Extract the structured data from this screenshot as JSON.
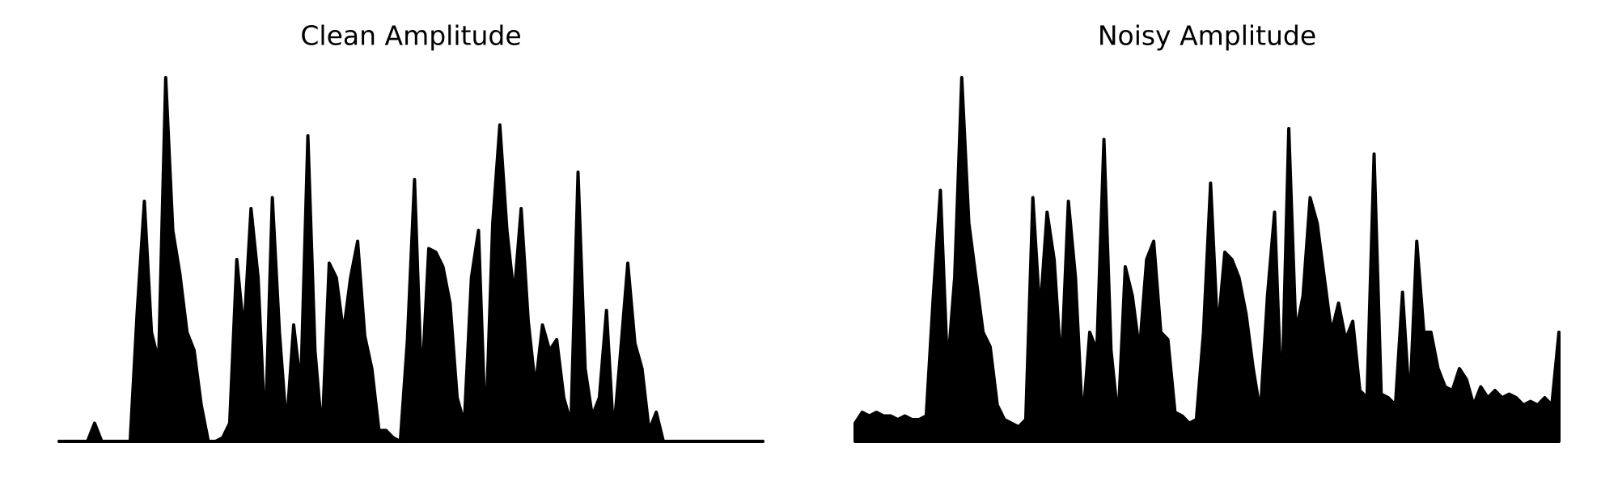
{
  "chart_data": [
    {
      "type": "area",
      "title": "Clean Amplitude",
      "color": "#000000",
      "ylim": [
        0,
        1
      ],
      "values": [
        0,
        0,
        0,
        0,
        0,
        0.05,
        0,
        0,
        0,
        0,
        0,
        0.36,
        0.66,
        0.3,
        0.22,
        1.0,
        0.58,
        0.46,
        0.3,
        0.25,
        0.1,
        0,
        0,
        0.01,
        0.05,
        0.5,
        0.3,
        0.64,
        0.45,
        0.02,
        0.67,
        0.3,
        0.04,
        0.32,
        0.15,
        0.84,
        0.25,
        0.02,
        0.49,
        0.45,
        0.3,
        0.45,
        0.55,
        0.29,
        0.2,
        0.03,
        0.03,
        0.01,
        0,
        0.28,
        0.72,
        0.15,
        0.53,
        0.52,
        0.48,
        0.38,
        0.12,
        0.05,
        0.45,
        0.58,
        0.02,
        0.6,
        0.87,
        0.58,
        0.4,
        0.64,
        0.33,
        0.15,
        0.32,
        0.25,
        0.28,
        0.12,
        0.05,
        0.74,
        0.2,
        0.07,
        0.12,
        0.36,
        0.02,
        0.25,
        0.49,
        0.27,
        0.2,
        0.03,
        0.08,
        0,
        0,
        0,
        0,
        0,
        0,
        0,
        0,
        0,
        0,
        0,
        0,
        0,
        0,
        0
      ]
    },
    {
      "type": "area",
      "title": "Noisy Amplitude",
      "color": "#000000",
      "ylim": [
        0,
        1
      ],
      "values": [
        0.05,
        0.08,
        0.07,
        0.08,
        0.07,
        0.07,
        0.06,
        0.07,
        0.06,
        0.06,
        0.07,
        0.4,
        0.69,
        0.2,
        0.45,
        1.0,
        0.6,
        0.45,
        0.3,
        0.26,
        0.1,
        0.06,
        0.05,
        0.04,
        0.06,
        0.67,
        0.35,
        0.63,
        0.5,
        0.2,
        0.66,
        0.45,
        0.05,
        0.3,
        0.25,
        0.83,
        0.25,
        0.06,
        0.48,
        0.4,
        0.25,
        0.5,
        0.55,
        0.3,
        0.28,
        0.08,
        0.07,
        0.05,
        0.06,
        0.3,
        0.71,
        0.3,
        0.52,
        0.5,
        0.45,
        0.35,
        0.2,
        0.08,
        0.4,
        0.63,
        0.1,
        0.86,
        0.3,
        0.4,
        0.67,
        0.6,
        0.45,
        0.3,
        0.38,
        0.28,
        0.33,
        0.14,
        0.12,
        0.79,
        0.13,
        0.12,
        0.1,
        0.41,
        0.1,
        0.55,
        0.3,
        0.3,
        0.2,
        0.15,
        0.14,
        0.2,
        0.17,
        0.1,
        0.15,
        0.12,
        0.14,
        0.12,
        0.13,
        0.12,
        0.1,
        0.11,
        0.1,
        0.12,
        0.1,
        0.3
      ]
    }
  ]
}
